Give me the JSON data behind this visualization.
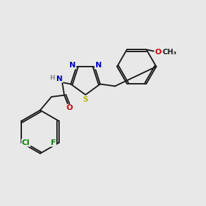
{
  "bg_color": "#e8e8e8",
  "bond_color": "#1a1a1a",
  "atom_colors": {
    "N": "#0000cc",
    "S": "#b8b800",
    "O": "#cc0000",
    "F": "#008800",
    "Cl": "#008800",
    "H": "#888888",
    "C": "#1a1a1a"
  },
  "font_size": 8.0
}
